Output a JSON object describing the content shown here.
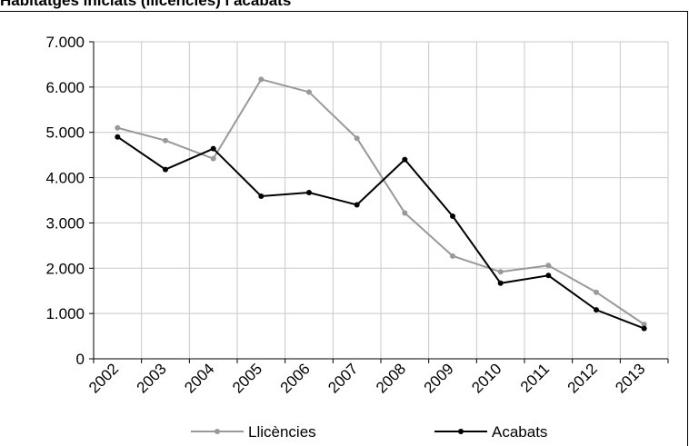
{
  "chart_data": {
    "type": "line",
    "title": "Habitatges iniciats (llicències) i acabats",
    "categories": [
      "2002",
      "2003",
      "2004",
      "2005",
      "2006",
      "2007",
      "2008",
      "2009",
      "2010",
      "2011",
      "2012",
      "2013"
    ],
    "series": [
      {
        "name": "Llicències",
        "color": "#999999",
        "values": [
          5100,
          4820,
          4420,
          6170,
          5890,
          4870,
          3220,
          2270,
          1920,
          2060,
          1470,
          760
        ]
      },
      {
        "name": "Acabats",
        "color": "#000000",
        "values": [
          4900,
          4180,
          4640,
          3590,
          3670,
          3400,
          4400,
          3150,
          1670,
          1840,
          1080,
          670
        ]
      }
    ],
    "yticks": [
      "0",
      "1.000",
      "2.000",
      "3.000",
      "4.000",
      "5.000",
      "6.000",
      "7.000"
    ],
    "ylim": [
      0,
      7000
    ],
    "grid": true,
    "legend_position": "bottom"
  }
}
